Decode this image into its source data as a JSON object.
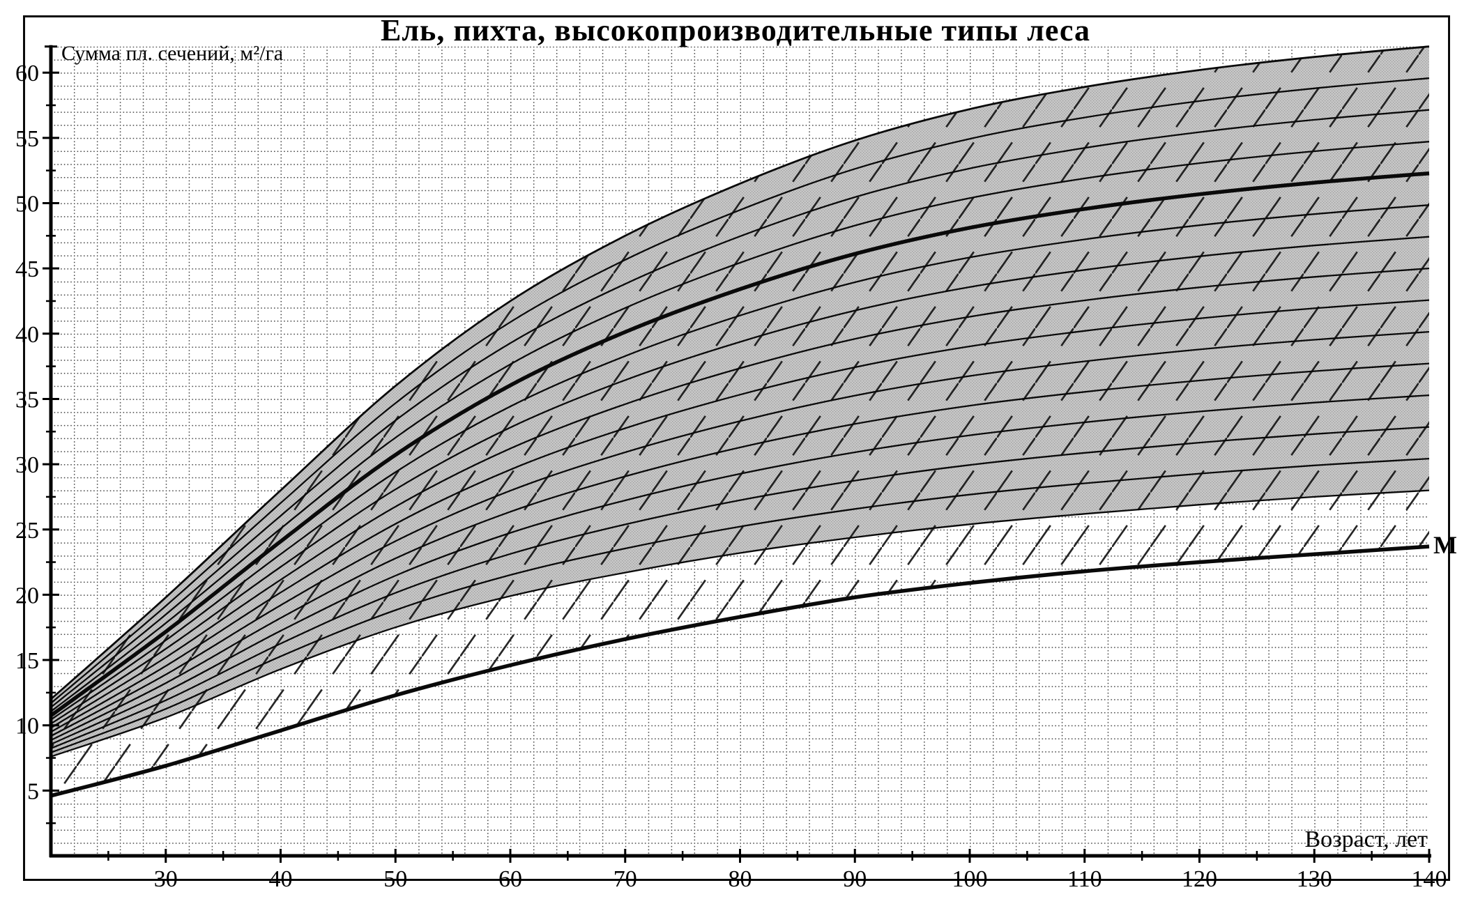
{
  "chart_data": {
    "type": "line",
    "title": "Ель, пихта, высокопроизводительные типы леса",
    "ylabel": "Сумма пл. сечений, м²/га",
    "xlabel": "Возраст, лет",
    "end_label": "M",
    "x": [
      20,
      30,
      40,
      50,
      60,
      70,
      80,
      90,
      100,
      110,
      120,
      130,
      140
    ],
    "xlim": [
      20,
      140
    ],
    "ylim": [
      0,
      62
    ],
    "x_tick_labels": [
      "30",
      "40",
      "50",
      "60",
      "70",
      "80",
      "90",
      "100",
      "110",
      "120",
      "130",
      "140"
    ],
    "x_minor_step": 5,
    "y_tick_labels": [
      "5",
      "10",
      "15",
      "20",
      "25",
      "30",
      "35",
      "40",
      "45",
      "50",
      "55",
      "60"
    ],
    "y_minor_step": 2.5,
    "grid": {
      "x_step_years": 2,
      "y_step_units": 1,
      "style": "dotted"
    },
    "legend_position": "none",
    "series": [
      {
        "name": "band-top-curve",
        "values": [
          12,
          19.8,
          28,
          36,
          42.5,
          47.5,
          51.5,
          54.8,
          57.2,
          58.9,
          60.2,
          61.2,
          62
        ]
      },
      {
        "name": "band-bottom-curve",
        "values": [
          7.6,
          10.6,
          14.3,
          17.5,
          19.9,
          21.7,
          23.2,
          24.4,
          25.4,
          26.2,
          26.9,
          27.5,
          28
        ]
      },
      {
        "name": "m-curve",
        "values": [
          4.6,
          6.9,
          9.6,
          12.3,
          14.6,
          16.6,
          18.3,
          19.8,
          20.9,
          21.8,
          22.5,
          23.1,
          23.7
        ]
      }
    ],
    "fan": {
      "count": 15,
      "bold_index": 4,
      "interpolation": "linear-between-band-edges"
    },
    "colors": {
      "curve": "#0a0a0a",
      "band_fill": "#c7c7c7",
      "halftone_dot": "#9b9b9b",
      "hatch": "#151515"
    }
  }
}
